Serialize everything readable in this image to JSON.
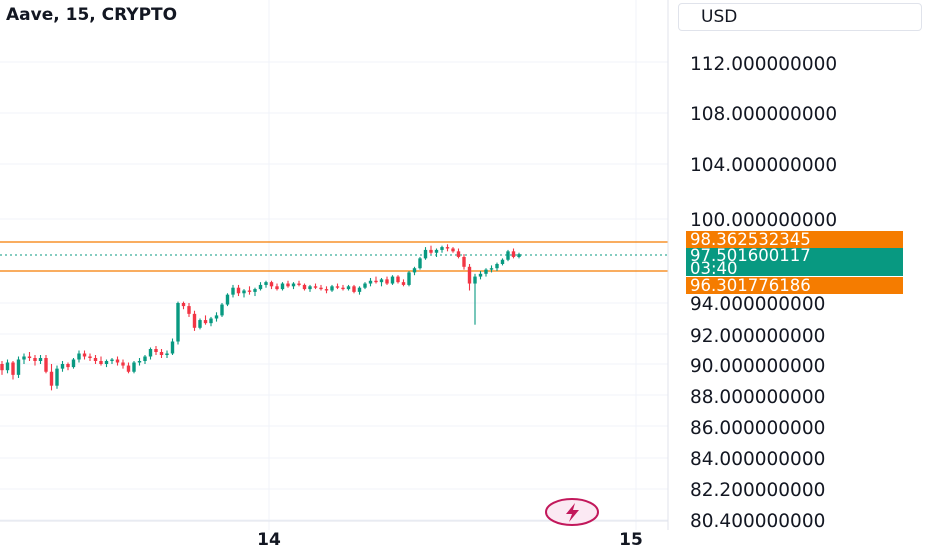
{
  "header": {
    "symbol_title": "Aave, 15, CRYPTO"
  },
  "currency": {
    "label": "USD"
  },
  "price_axis": {
    "ticks": [
      {
        "value": 112.0,
        "label": "112.000000000"
      },
      {
        "value": 108.0,
        "label": "108.000000000"
      },
      {
        "value": 104.0,
        "label": "104.000000000"
      },
      {
        "value": 100.0,
        "label": "100.000000000"
      },
      {
        "value": 94.0,
        "label": "94.000000000"
      },
      {
        "value": 92.0,
        "label": "92.000000000"
      },
      {
        "value": 90.0,
        "label": "90.000000000"
      },
      {
        "value": 88.0,
        "label": "88.000000000"
      },
      {
        "value": 86.0,
        "label": "86.000000000"
      },
      {
        "value": 84.0,
        "label": "84.000000000"
      },
      {
        "value": 82.2,
        "label": "82.200000000"
      },
      {
        "value": 80.4,
        "label": "80.400000000"
      }
    ]
  },
  "time_axis": {
    "labels": [
      "14",
      "15"
    ]
  },
  "price_tags": {
    "high": {
      "value": 98.362532345,
      "label": "98.362532345",
      "color": "#f57c00"
    },
    "current": {
      "value": 97.501600117,
      "label": "97.501600117",
      "countdown": "03:40",
      "color": "#089981"
    },
    "low": {
      "value": 96.301776186,
      "label": "96.301776186",
      "color": "#f57c00"
    }
  },
  "colors": {
    "up": "#089981",
    "down": "#f23645",
    "grid": "#f0f3fa",
    "level": "#f57c00"
  },
  "icons": {
    "bottom": "lightning-bolt-icon"
  },
  "chart_data": {
    "type": "candlestick",
    "title": "Aave, 15, CRYPTO",
    "currency": "USD",
    "y_axis_scale": "non-linear (per printed tick labels)",
    "grid": true,
    "horizontal_levels": [
      98.362532345,
      96.301776186
    ],
    "last_price": 97.501600117,
    "x_labels": [
      "14",
      "15"
    ],
    "candles": [
      [
        90.0,
        90.2,
        89.3,
        89.6
      ],
      [
        89.6,
        90.3,
        89.4,
        90.1
      ],
      [
        90.1,
        90.2,
        89.0,
        89.3
      ],
      [
        89.3,
        90.5,
        89.1,
        90.3
      ],
      [
        90.3,
        90.7,
        90.0,
        90.5
      ],
      [
        90.5,
        90.8,
        90.2,
        90.4
      ],
      [
        90.4,
        90.6,
        89.9,
        90.2
      ],
      [
        90.2,
        90.6,
        90.0,
        90.4
      ],
      [
        90.4,
        90.6,
        89.4,
        89.5
      ],
      [
        89.5,
        90.0,
        88.3,
        88.6
      ],
      [
        88.6,
        89.9,
        88.4,
        89.7
      ],
      [
        89.7,
        90.2,
        89.5,
        90.0
      ],
      [
        90.0,
        90.1,
        89.6,
        89.8
      ],
      [
        89.8,
        90.4,
        89.7,
        90.3
      ],
      [
        90.3,
        90.9,
        90.1,
        90.7
      ],
      [
        90.7,
        90.9,
        90.3,
        90.5
      ],
      [
        90.5,
        90.7,
        90.2,
        90.4
      ],
      [
        90.4,
        90.6,
        90.0,
        90.2
      ],
      [
        90.2,
        90.5,
        89.9,
        90.0
      ],
      [
        90.0,
        90.3,
        89.8,
        90.2
      ],
      [
        90.2,
        90.4,
        90.0,
        90.3
      ],
      [
        90.3,
        90.5,
        89.9,
        90.1
      ],
      [
        90.1,
        90.3,
        89.7,
        89.9
      ],
      [
        89.9,
        90.1,
        89.4,
        89.5
      ],
      [
        89.5,
        90.2,
        89.4,
        90.1
      ],
      [
        90.1,
        90.4,
        89.9,
        90.2
      ],
      [
        90.2,
        90.6,
        90.0,
        90.5
      ],
      [
        90.5,
        91.1,
        90.3,
        91.0
      ],
      [
        91.0,
        91.2,
        90.6,
        90.8
      ],
      [
        90.8,
        91.0,
        90.4,
        90.6
      ],
      [
        90.6,
        90.9,
        90.4,
        90.7
      ],
      [
        90.7,
        91.7,
        90.6,
        91.5
      ],
      [
        91.5,
        94.1,
        91.3,
        94.0
      ],
      [
        94.0,
        94.1,
        93.6,
        93.8
      ],
      [
        93.8,
        94.0,
        93.1,
        93.3
      ],
      [
        93.3,
        93.5,
        92.2,
        92.4
      ],
      [
        92.4,
        93.0,
        92.3,
        92.9
      ],
      [
        92.9,
        93.2,
        92.6,
        92.7
      ],
      [
        92.7,
        93.1,
        92.5,
        93.0
      ],
      [
        93.0,
        93.4,
        92.8,
        93.2
      ],
      [
        93.2,
        94.0,
        93.1,
        93.9
      ],
      [
        93.9,
        94.7,
        93.8,
        94.6
      ],
      [
        94.6,
        95.3,
        94.4,
        95.1
      ],
      [
        95.1,
        95.3,
        94.5,
        94.7
      ],
      [
        94.7,
        95.0,
        94.4,
        94.9
      ],
      [
        94.9,
        95.2,
        94.6,
        94.8
      ],
      [
        94.8,
        95.1,
        94.5,
        95.0
      ],
      [
        95.0,
        95.5,
        94.9,
        95.3
      ],
      [
        95.3,
        95.6,
        95.1,
        95.5
      ],
      [
        95.5,
        95.6,
        95.0,
        95.2
      ],
      [
        95.2,
        95.4,
        94.9,
        95.0
      ],
      [
        95.0,
        95.5,
        94.9,
        95.4
      ],
      [
        95.4,
        95.6,
        95.1,
        95.2
      ],
      [
        95.2,
        95.5,
        95.0,
        95.4
      ],
      [
        95.4,
        95.6,
        95.2,
        95.3
      ],
      [
        95.3,
        95.4,
        94.9,
        95.0
      ],
      [
        95.0,
        95.3,
        94.8,
        95.2
      ],
      [
        95.2,
        95.4,
        95.0,
        95.1
      ],
      [
        95.1,
        95.3,
        94.9,
        95.0
      ],
      [
        95.0,
        95.2,
        94.7,
        94.9
      ],
      [
        94.9,
        95.3,
        94.8,
        95.2
      ],
      [
        95.2,
        95.4,
        95.0,
        95.1
      ],
      [
        95.1,
        95.3,
        94.9,
        95.0
      ],
      [
        95.0,
        95.3,
        94.9,
        95.2
      ],
      [
        95.2,
        95.3,
        94.7,
        94.8
      ],
      [
        94.8,
        95.2,
        94.6,
        95.1
      ],
      [
        95.1,
        95.5,
        95.0,
        95.4
      ],
      [
        95.4,
        95.8,
        95.2,
        95.6
      ],
      [
        95.6,
        95.9,
        95.4,
        95.5
      ],
      [
        95.5,
        95.8,
        95.2,
        95.7
      ],
      [
        95.7,
        95.9,
        95.3,
        95.4
      ],
      [
        95.4,
        96.0,
        95.3,
        95.9
      ],
      [
        95.9,
        96.0,
        95.4,
        95.5
      ],
      [
        95.5,
        95.7,
        95.2,
        95.3
      ],
      [
        95.3,
        96.3,
        95.2,
        96.2
      ],
      [
        96.2,
        96.6,
        96.0,
        96.5
      ],
      [
        96.5,
        97.3,
        96.4,
        97.2
      ],
      [
        97.2,
        98.0,
        97.1,
        97.8
      ],
      [
        97.8,
        98.1,
        97.5,
        97.6
      ],
      [
        97.6,
        97.9,
        97.3,
        97.8
      ],
      [
        97.8,
        98.1,
        97.6,
        98.0
      ],
      [
        98.0,
        98.2,
        97.7,
        97.9
      ],
      [
        97.9,
        98.0,
        97.6,
        97.7
      ],
      [
        97.7,
        97.9,
        97.2,
        97.3
      ],
      [
        97.3,
        97.5,
        96.4,
        96.6
      ],
      [
        96.6,
        96.8,
        94.9,
        95.4
      ],
      [
        95.4,
        96.1,
        92.6,
        95.9
      ],
      [
        95.9,
        96.3,
        95.7,
        96.1
      ],
      [
        96.1,
        96.5,
        95.9,
        96.4
      ],
      [
        96.4,
        96.7,
        96.2,
        96.5
      ],
      [
        96.5,
        96.9,
        96.3,
        96.8
      ],
      [
        96.8,
        97.2,
        96.7,
        97.1
      ],
      [
        97.1,
        97.8,
        97.0,
        97.7
      ],
      [
        97.7,
        97.9,
        97.2,
        97.3
      ],
      [
        97.3,
        97.6,
        97.2,
        97.5
      ]
    ]
  }
}
